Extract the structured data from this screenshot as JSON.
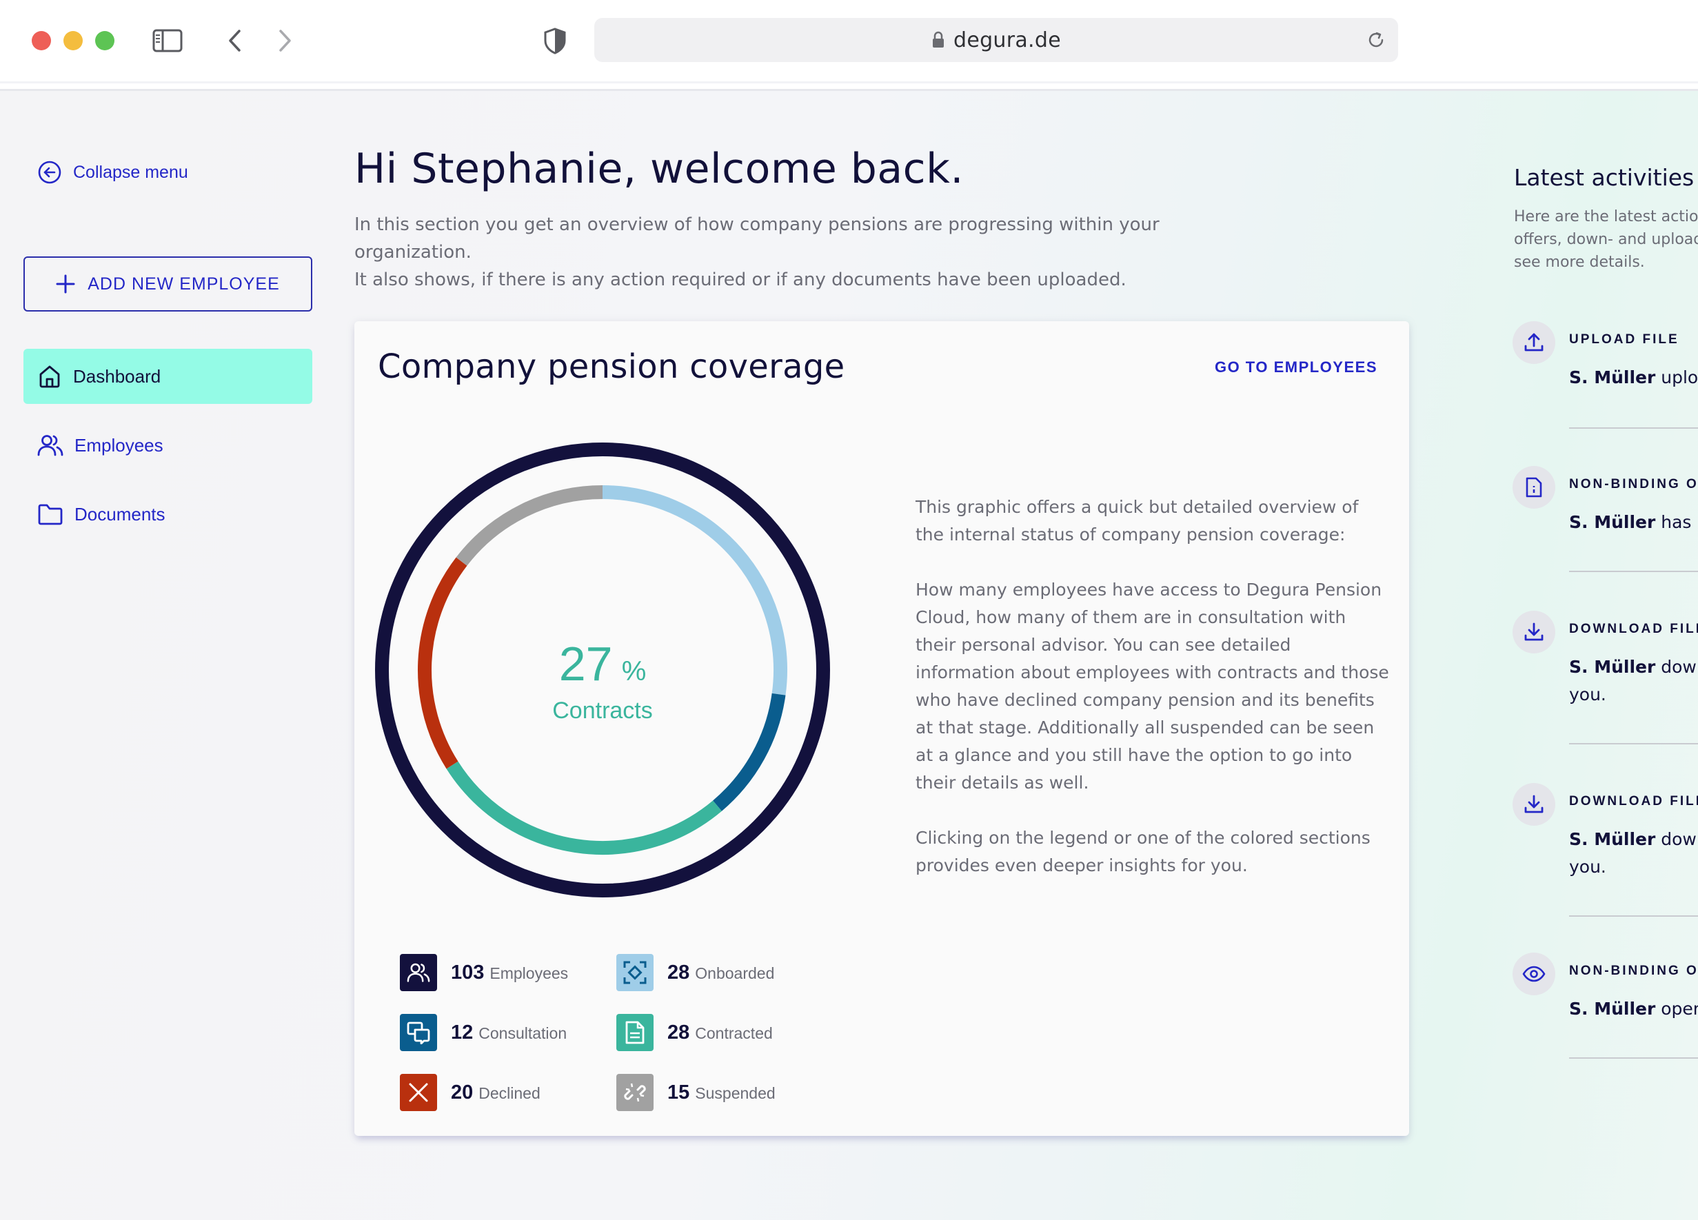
{
  "browser": {
    "url": "degura.de"
  },
  "sidebar": {
    "collapse_label": "Collapse menu",
    "add_button_label": "ADD NEW EMPLOYEE",
    "items": [
      {
        "label": "Dashboard",
        "icon": "home-icon",
        "active": true
      },
      {
        "label": "Employees",
        "icon": "users-icon",
        "active": false
      },
      {
        "label": "Documents",
        "icon": "folder-icon",
        "active": false
      }
    ]
  },
  "header": {
    "greeting": "Hi Stephanie, welcome back.",
    "intro_line1": "In this section you get an overview of how company pensions are progressing within your organization.",
    "intro_line2": "It also shows, if there is any action required or if any documents have been uploaded."
  },
  "card": {
    "title": "Company pension coverage",
    "link": "GO TO EMPLOYEES",
    "center_value": "27",
    "center_unit": "%",
    "center_label": "Contracts",
    "description": [
      "This graphic offers a quick but detailed overview of the internal status of company pension coverage:",
      "How many employees have access to Degura Pension Cloud, how many of them are in consultation with their personal advisor. You can see detailed information about employees with contracts and those who have declined company pension and its benefits at that stage. Additionally all suspended can be seen at a glance and you still have the option to go into their details as well.",
      "Clicking on the legend or one of the colored sections provides even deeper insights for you."
    ],
    "legend": [
      {
        "value": "103",
        "label": "Employees",
        "color": "#13113d",
        "icon": "users-icon"
      },
      {
        "value": "28",
        "label": "Onboarded",
        "color": "#9fcde8",
        "icon": "focus-icon"
      },
      {
        "value": "12",
        "label": "Consultation",
        "color": "#0a5d8e",
        "icon": "chat-icon"
      },
      {
        "value": "28",
        "label": "Contracted",
        "color": "#3ab59d",
        "icon": "document-icon"
      },
      {
        "value": "20",
        "label": "Declined",
        "color": "#b9300e",
        "icon": "close-icon"
      },
      {
        "value": "15",
        "label": "Suspended",
        "color": "#a1a1a1",
        "icon": "broken-link-icon"
      }
    ]
  },
  "chart_data": {
    "type": "pie",
    "outer_ring": {
      "name": "Employees",
      "value": 103,
      "color": "#13113d"
    },
    "series": [
      {
        "name": "Onboarded",
        "value": 28,
        "color": "#9fcde8"
      },
      {
        "name": "Consultation",
        "value": 12,
        "color": "#0a5d8e"
      },
      {
        "name": "Contracted",
        "value": 28,
        "color": "#3ab59d"
      },
      {
        "name": "Declined",
        "value": 20,
        "color": "#b9300e"
      },
      {
        "name": "Suspended",
        "value": 15,
        "color": "#a1a1a1"
      }
    ],
    "center_text": "27 % Contracts"
  },
  "activities": {
    "title": "Latest activities",
    "subtitle_lines": [
      "Here are the latest actions",
      "offers, down- and uploads",
      "see more details."
    ],
    "items": [
      {
        "type": "UPLOAD FILE",
        "user": "S. Müller",
        "text": "uploaded",
        "text2": "",
        "icon": "upload-icon"
      },
      {
        "type": "NON-BINDING OFFER",
        "user": "S. Müller",
        "text": "has received",
        "text2": "",
        "icon": "document-icon"
      },
      {
        "type": "DOWNLOAD FILE",
        "user": "S. Müller",
        "text": "downloaded",
        "text2": "you.",
        "icon": "download-icon"
      },
      {
        "type": "DOWNLOAD FILE",
        "user": "S. Müller",
        "text": "downloaded",
        "text2": "you.",
        "icon": "download-icon"
      },
      {
        "type": "NON-BINDING OFFER",
        "user": "S. Müller",
        "text": "opened",
        "text2": "",
        "icon": "eye-icon"
      }
    ]
  }
}
